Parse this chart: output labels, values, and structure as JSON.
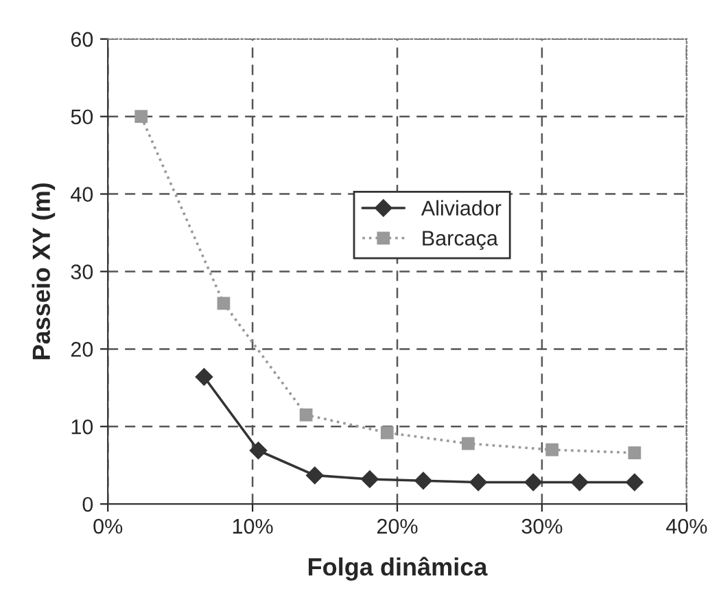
{
  "chart_data": {
    "type": "line",
    "xlabel": "Folga dinâmica",
    "ylabel": "Passeio XY (m)",
    "xlim": [
      0,
      40
    ],
    "xticks": [
      {
        "value": 0,
        "label": "0%"
      },
      {
        "value": 10,
        "label": "10%"
      },
      {
        "value": 20,
        "label": "20%"
      },
      {
        "value": 30,
        "label": "30%"
      },
      {
        "value": 40,
        "label": "40%"
      }
    ],
    "ylim": [
      0,
      60
    ],
    "yticks": [
      0,
      10,
      20,
      30,
      40,
      50,
      60
    ],
    "grid": true,
    "legend": "center",
    "series": [
      {
        "name": "Aliviador",
        "color": "#333333",
        "marker": "diamond",
        "line_style": "solid",
        "x": [
          6.65,
          10.4,
          14.3,
          18.1,
          21.8,
          25.6,
          29.4,
          32.6,
          36.4
        ],
        "values": [
          16.4,
          6.9,
          3.7,
          3.2,
          3.0,
          2.8,
          2.8,
          2.8,
          2.8
        ]
      },
      {
        "name": "Barcaça",
        "color": "#999999",
        "marker": "square",
        "line_style": "dotted",
        "x": [
          2.3,
          8.0,
          13.7,
          19.3,
          24.9,
          30.7,
          36.4
        ],
        "values": [
          50,
          25.9,
          11.5,
          9.2,
          7.8,
          7.0,
          6.6
        ]
      }
    ]
  }
}
